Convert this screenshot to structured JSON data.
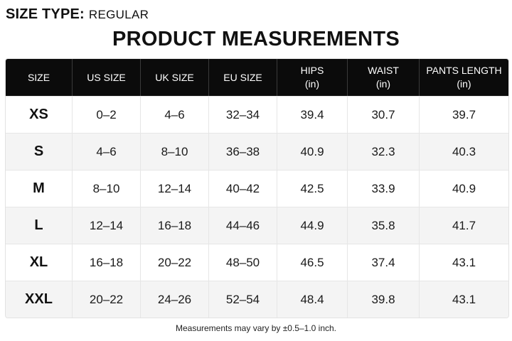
{
  "size_type": {
    "label": "SIZE TYPE:",
    "value": "REGULAR"
  },
  "title": "PRODUCT MEASUREMENTS",
  "table": {
    "headers": [
      {
        "line1": "SIZE",
        "line2": ""
      },
      {
        "line1": "US SIZE",
        "line2": ""
      },
      {
        "line1": "UK SIZE",
        "line2": ""
      },
      {
        "line1": "EU SIZE",
        "line2": ""
      },
      {
        "line1": "HIPS",
        "line2": "(in)"
      },
      {
        "line1": "WAIST",
        "line2": "(in)"
      },
      {
        "line1": "PANTS LENGTH",
        "line2": "(in)"
      }
    ],
    "rows": [
      [
        "XS",
        "0–2",
        "4–6",
        "32–34",
        "39.4",
        "30.7",
        "39.7"
      ],
      [
        "S",
        "4–6",
        "8–10",
        "36–38",
        "40.9",
        "32.3",
        "40.3"
      ],
      [
        "M",
        "8–10",
        "12–14",
        "40–42",
        "42.5",
        "33.9",
        "40.9"
      ],
      [
        "L",
        "12–14",
        "16–18",
        "44–46",
        "44.9",
        "35.8",
        "41.7"
      ],
      [
        "XL",
        "16–18",
        "20–22",
        "48–50",
        "46.5",
        "37.4",
        "43.1"
      ],
      [
        "XXL",
        "20–22",
        "24–26",
        "52–54",
        "48.4",
        "39.8",
        "43.1"
      ]
    ]
  },
  "footnote": "Measurements may vary by ±0.5–1.0 inch.",
  "colors": {
    "header_bg": "#0b0b0b",
    "header_text": "#ffffff",
    "row_alt": "#f4f4f4"
  }
}
